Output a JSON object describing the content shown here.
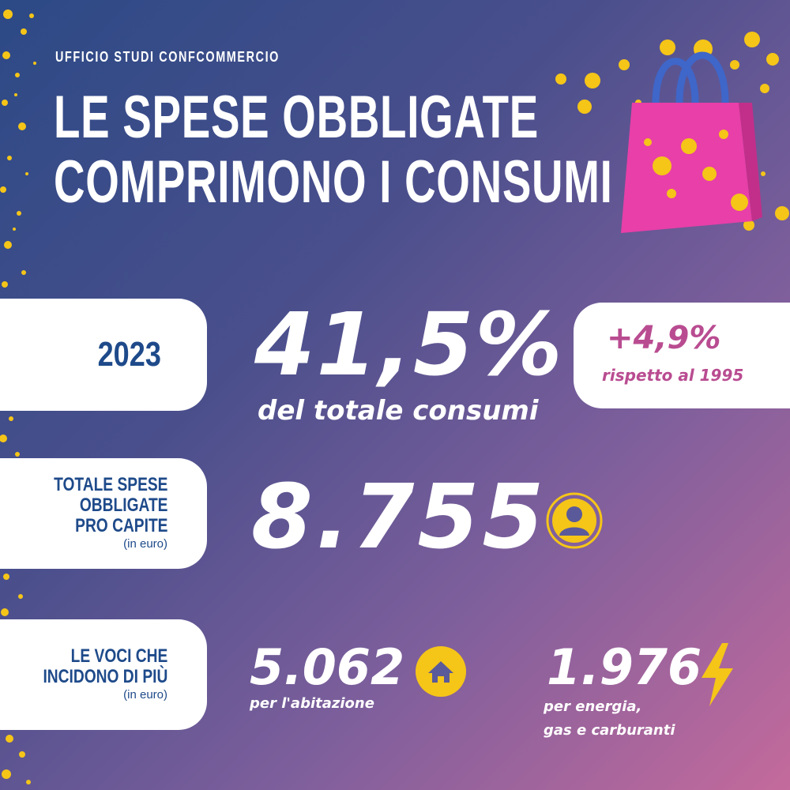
{
  "header": {
    "eyebrow": "UFFICIO STUDI CONFCOMMERCIO",
    "title_line1": "LE SPESE OBBLIGATE",
    "title_line2": "COMPRIMONO I CONSUMI"
  },
  "row1": {
    "year": "2023",
    "percent": "41,5%",
    "percent_caption": "del totale consumi",
    "delta": "+4,9%",
    "delta_caption": "rispetto al 1995"
  },
  "row2": {
    "label_line1": "TOTALE SPESE",
    "label_line2": "OBBLIGATE",
    "label_line3": "PRO CAPITE",
    "unit": "(in euro)",
    "value": "8.755",
    "icon": "person-icon"
  },
  "row3": {
    "label_line1": "LE VOCI CHE",
    "label_line2": "INCIDONO DI PIÙ",
    "unit": "(in euro)",
    "housing_value": "5.062",
    "housing_caption": "per l'abitazione",
    "housing_icon": "house-icon",
    "energy_value": "1.976",
    "energy_caption_line1": "per energia,",
    "energy_caption_line2": "gas e carburanti",
    "energy_icon": "lightning-icon"
  },
  "colors": {
    "navy_text": "#1e4a8a",
    "magenta_text": "#b94c91",
    "gold": "#f5c518",
    "bag_pink": "#e83fa8"
  }
}
